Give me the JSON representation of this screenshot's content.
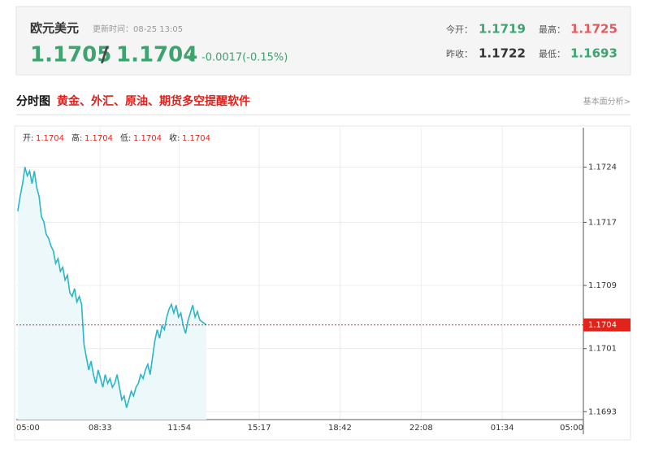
{
  "header": {
    "name": "欧元美元",
    "update_time": "更新时间：08-25 13:05",
    "price": "1.1705",
    "separator": "/",
    "price2": "1.1704",
    "arrow": "↓",
    "change": "-0.0017(-0.15%)",
    "stats": [
      {
        "label": "今开：",
        "value": "1.1719"
      },
      {
        "label": "最高：",
        "value": "1.1725"
      },
      {
        "label": "昨收：",
        "value": "1.1722"
      },
      {
        "label": "最低：",
        "value": "1.1693"
      }
    ]
  },
  "tabs": {
    "active": "分时图",
    "promo": "黄金、外汇、原油、期货多空提醒软件",
    "link": "基本面分析>"
  },
  "chart_data": {
    "type": "line",
    "ohlc": [
      {
        "label": "开:",
        "value": "1.1704"
      },
      {
        "label": "高:",
        "value": "1.1704"
      },
      {
        "label": "低:",
        "value": "1.1704"
      },
      {
        "label": "收:",
        "value": "1.1704"
      }
    ],
    "x": [
      "05:04",
      "05:10",
      "05:16",
      "05:22",
      "05:28",
      "05:34",
      "05:40",
      "05:46",
      "05:52",
      "05:58",
      "06:04",
      "06:10",
      "06:16",
      "06:22",
      "06:28",
      "06:34",
      "06:40",
      "06:46",
      "06:52",
      "06:58",
      "07:04",
      "07:10",
      "07:16",
      "07:22",
      "07:28",
      "07:34",
      "07:40",
      "07:46",
      "07:52",
      "07:58",
      "08:04",
      "08:10",
      "08:16",
      "08:22",
      "08:28",
      "08:34",
      "08:40",
      "08:46",
      "08:52",
      "08:58",
      "09:04",
      "09:10",
      "09:16",
      "09:22",
      "09:28",
      "09:34",
      "09:40",
      "09:46",
      "09:52",
      "09:58",
      "10:04",
      "10:10",
      "10:16",
      "10:22",
      "10:28",
      "10:34",
      "10:40",
      "10:46",
      "10:52",
      "10:58",
      "11:04",
      "11:10",
      "11:16",
      "11:22",
      "11:28",
      "11:34",
      "11:40",
      "11:46",
      "11:52",
      "11:58",
      "12:04",
      "12:10",
      "12:16",
      "12:22",
      "12:28",
      "12:34",
      "12:40",
      "12:46",
      "13:03"
    ],
    "values": [
      1.17184,
      1.17203,
      1.17219,
      1.1724,
      1.17229,
      1.17235,
      1.17219,
      1.17235,
      1.17214,
      1.17203,
      1.17177,
      1.17171,
      1.17155,
      1.1715,
      1.1714,
      1.17134,
      1.17118,
      1.17124,
      1.17108,
      1.17113,
      1.17097,
      1.17103,
      1.17081,
      1.17076,
      1.17086,
      1.17069,
      1.17076,
      1.17066,
      1.17015,
      1.16999,
      1.16983,
      1.16994,
      1.16977,
      1.16966,
      1.16983,
      1.16972,
      1.16961,
      1.16977,
      1.16966,
      1.16972,
      1.16961,
      1.16966,
      1.16977,
      1.16961,
      1.16945,
      1.1695,
      1.16935,
      1.16945,
      1.16956,
      1.1695,
      1.16961,
      1.16966,
      1.16977,
      1.16972,
      1.16983,
      1.1699,
      1.16977,
      1.16999,
      1.1702,
      1.17034,
      1.17023,
      1.17039,
      1.17034,
      1.1705,
      1.1706,
      1.17066,
      1.17055,
      1.17065,
      1.1705,
      1.17055,
      1.17039,
      1.17029,
      1.17045,
      1.17055,
      1.17065,
      1.1705,
      1.17057,
      1.17046,
      1.1704
    ],
    "color": "#2bb5c8",
    "fill": "#edf8fb",
    "current": 1.1704,
    "current_color": "#e2231a",
    "ylim": [
      1.1692,
      1.1729
    ],
    "yticks": [
      1.1724,
      1.1717,
      1.1709,
      1.1701,
      1.1693
    ],
    "xticks": [
      "05:00",
      "08:33",
      "11:54",
      "15:17",
      "18:42",
      "22:08",
      "01:34",
      "05:00"
    ],
    "grid": true
  }
}
